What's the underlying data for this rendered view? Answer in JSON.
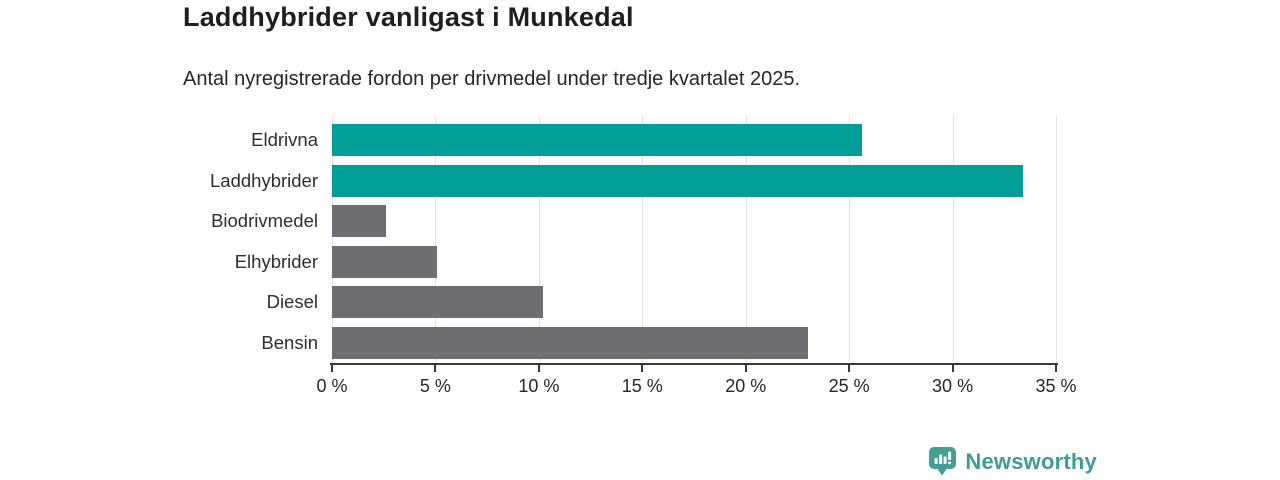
{
  "header": {
    "title": "Laddhybrider vanligast i Munkedal",
    "subtitle": "Antal nyregistrerade fordon per drivmedel under tredje kvartalet 2025."
  },
  "chart_data": {
    "type": "bar",
    "orientation": "horizontal",
    "title": "Laddhybrider vanligast i Munkedal",
    "subtitle": "Antal nyregistrerade fordon per drivmedel under tredje kvartalet 2025.",
    "categories": [
      "Eldrivna",
      "Laddhybrider",
      "Biodrivmedel",
      "Elhybrider",
      "Diesel",
      "Bensin"
    ],
    "values": [
      25.6,
      33.4,
      2.6,
      5.1,
      10.2,
      23.0
    ],
    "unit": "%",
    "xlabel": "",
    "ylabel": "",
    "xlim": [
      0,
      35
    ],
    "x_tick_values": [
      0,
      5,
      10,
      15,
      20,
      25,
      30,
      35
    ],
    "x_tick_labels": [
      "0 %",
      "5 %",
      "10 %",
      "15 %",
      "20 %",
      "25 %",
      "30 %",
      "35 %"
    ],
    "grid": "vertical-only",
    "legend": "none",
    "highlight_color": "#009E96",
    "default_color": "#6E6E73",
    "bar_colors": [
      "#009E96",
      "#009E96",
      "#6E6E73",
      "#6E6E73",
      "#6E6E73",
      "#6E6E73"
    ]
  },
  "branding": {
    "logo_text": "Newsworthy",
    "logo_color": "#3F9C92",
    "icon": "bar-chart-speech-bubble-icon"
  },
  "colors": {
    "background": "#FFFFFF",
    "gridline": "#E2E2E7",
    "axis": "#37373C",
    "title_text": "#1E1E22",
    "label_text": "#2E2E33"
  }
}
